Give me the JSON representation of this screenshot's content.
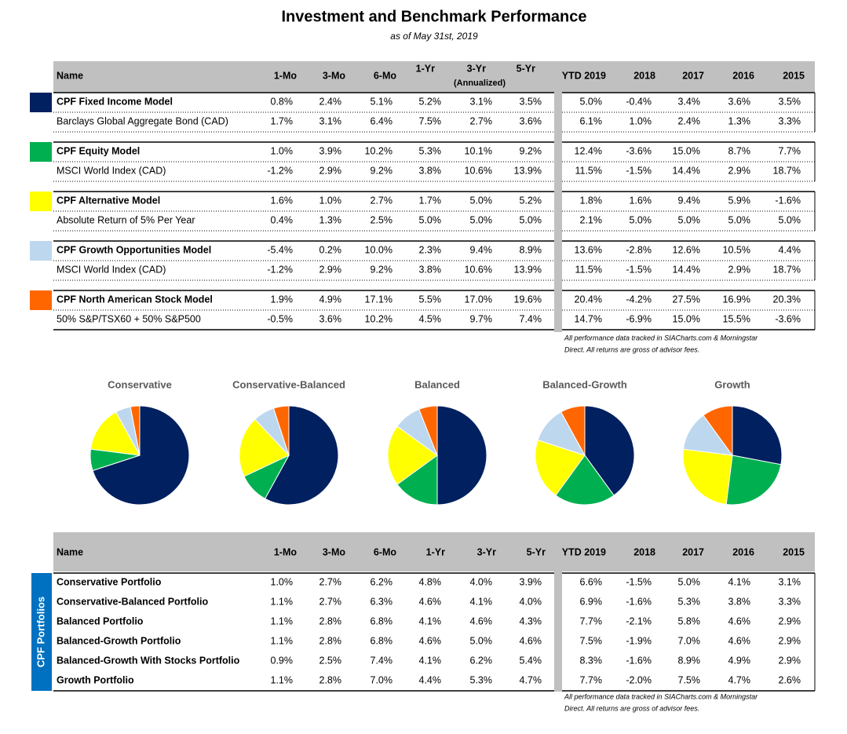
{
  "header": {
    "title": "Investment and Benchmark Performance",
    "subtitle": "as of May 31st, 2019"
  },
  "table1": {
    "columns": [
      "Name",
      "1-Mo",
      "3-Mo",
      "6-Mo",
      "1-Yr",
      "3-Yr",
      "5-Yr",
      "YTD 2019",
      "2018",
      "2017",
      "2016",
      "2015"
    ],
    "column_note": "(Annualized)",
    "groups": [
      {
        "color": "#002060",
        "rows": [
          {
            "name": "CPF Fixed Income Model",
            "cells": [
              "0.8%",
              "2.4%",
              "5.1%",
              "5.2%",
              "3.1%",
              "3.5%",
              "5.0%",
              "-0.4%",
              "3.4%",
              "3.6%",
              "3.5%"
            ]
          },
          {
            "name": "Barclays Global Aggregate Bond (CAD)",
            "cells": [
              "1.7%",
              "3.1%",
              "6.4%",
              "7.5%",
              "2.7%",
              "3.6%",
              "6.1%",
              "1.0%",
              "2.4%",
              "1.3%",
              "3.3%"
            ]
          }
        ]
      },
      {
        "color": "#00b050",
        "rows": [
          {
            "name": "CPF Equity Model",
            "cells": [
              "1.0%",
              "3.9%",
              "10.2%",
              "5.3%",
              "10.1%",
              "9.2%",
              "12.4%",
              "-3.6%",
              "15.0%",
              "8.7%",
              "7.7%"
            ]
          },
          {
            "name": "MSCI World Index (CAD)",
            "cells": [
              "-1.2%",
              "2.9%",
              "9.2%",
              "3.8%",
              "10.6%",
              "13.9%",
              "11.5%",
              "-1.5%",
              "14.4%",
              "2.9%",
              "18.7%"
            ]
          }
        ]
      },
      {
        "color": "#ffff00",
        "rows": [
          {
            "name": "CPF Alternative Model",
            "cells": [
              "1.6%",
              "1.0%",
              "2.7%",
              "1.7%",
              "5.0%",
              "5.2%",
              "1.8%",
              "1.6%",
              "9.4%",
              "5.9%",
              "-1.6%"
            ]
          },
          {
            "name": "Absolute Return of 5% Per Year",
            "cells": [
              "0.4%",
              "1.3%",
              "2.5%",
              "5.0%",
              "5.0%",
              "5.0%",
              "2.1%",
              "5.0%",
              "5.0%",
              "5.0%",
              "5.0%"
            ]
          }
        ]
      },
      {
        "color": "#bdd7ee",
        "rows": [
          {
            "name": "CPF Growth Opportunities Model",
            "cells": [
              "-5.4%",
              "0.2%",
              "10.0%",
              "2.3%",
              "9.4%",
              "8.9%",
              "13.6%",
              "-2.8%",
              "12.6%",
              "10.5%",
              "4.4%"
            ]
          },
          {
            "name": "MSCI World Index (CAD)",
            "cells": [
              "-1.2%",
              "2.9%",
              "9.2%",
              "3.8%",
              "10.6%",
              "13.9%",
              "11.5%",
              "-1.5%",
              "14.4%",
              "2.9%",
              "18.7%"
            ]
          }
        ]
      },
      {
        "color": "#ff6600",
        "rows": [
          {
            "name": "CPF North American Stock Model",
            "cells": [
              "1.9%",
              "4.9%",
              "17.1%",
              "5.5%",
              "17.0%",
              "19.6%",
              "20.4%",
              "-4.2%",
              "27.5%",
              "16.9%",
              "20.3%"
            ]
          },
          {
            "name": "50% S&P/TSX60 + 50% S&P500",
            "cells": [
              "-0.5%",
              "3.6%",
              "10.2%",
              "4.5%",
              "9.7%",
              "7.4%",
              "14.7%",
              "-6.9%",
              "15.0%",
              "15.5%",
              "-3.6%"
            ]
          }
        ]
      }
    ]
  },
  "note1": [
    "All performance data tracked in SIACharts.com & Morningstar",
    "Direct. All returns are gross of advisor fees."
  ],
  "chart_data": [
    {
      "type": "pie",
      "title": "Conservative",
      "values": [
        70,
        7,
        15,
        5,
        3
      ],
      "colors": [
        "#002060",
        "#00b050",
        "#ffff00",
        "#bdd7ee",
        "#ff6600"
      ]
    },
    {
      "type": "pie",
      "title": "Conservative-Balanced",
      "values": [
        58,
        10,
        20,
        7,
        5
      ],
      "colors": [
        "#002060",
        "#00b050",
        "#ffff00",
        "#bdd7ee",
        "#ff6600"
      ]
    },
    {
      "type": "pie",
      "title": "Balanced",
      "values": [
        50,
        15,
        20,
        9,
        6
      ],
      "colors": [
        "#002060",
        "#00b050",
        "#ffff00",
        "#bdd7ee",
        "#ff6600"
      ]
    },
    {
      "type": "pie",
      "title": "Balanced-Growth",
      "values": [
        40,
        20,
        20,
        12,
        8
      ],
      "colors": [
        "#002060",
        "#00b050",
        "#ffff00",
        "#bdd7ee",
        "#ff6600"
      ]
    },
    {
      "type": "pie",
      "title": "Growth",
      "values": [
        28,
        24,
        25,
        13,
        10
      ],
      "colors": [
        "#002060",
        "#00b050",
        "#ffff00",
        "#bdd7ee",
        "#ff6600"
      ]
    }
  ],
  "table2": {
    "columns": [
      "Name",
      "1-Mo",
      "3-Mo",
      "6-Mo",
      "1-Yr",
      "3-Yr",
      "5-Yr",
      "YTD 2019",
      "2018",
      "2017",
      "2016",
      "2015"
    ],
    "side_label": "CPF Portfolios",
    "side_color": "#0070c0",
    "rows": [
      {
        "name": "Conservative Portfolio",
        "cells": [
          "1.0%",
          "2.7%",
          "6.2%",
          "4.8%",
          "4.0%",
          "3.9%",
          "6.6%",
          "-1.5%",
          "5.0%",
          "4.1%",
          "3.1%"
        ]
      },
      {
        "name": "Conservative-Balanced Portfolio",
        "cells": [
          "1.1%",
          "2.7%",
          "6.3%",
          "4.6%",
          "4.1%",
          "4.0%",
          "6.9%",
          "-1.6%",
          "5.3%",
          "3.8%",
          "3.3%"
        ]
      },
      {
        "name": "Balanced Portfolio",
        "cells": [
          "1.1%",
          "2.8%",
          "6.8%",
          "4.1%",
          "4.6%",
          "4.3%",
          "7.7%",
          "-2.1%",
          "5.8%",
          "4.6%",
          "2.9%"
        ]
      },
      {
        "name": "Balanced-Growth Portfolio",
        "cells": [
          "1.1%",
          "2.8%",
          "6.8%",
          "4.6%",
          "5.0%",
          "4.6%",
          "7.5%",
          "-1.9%",
          "7.0%",
          "4.6%",
          "2.9%"
        ]
      },
      {
        "name": "Balanced-Growth With Stocks Portfolio",
        "cells": [
          "0.9%",
          "2.5%",
          "7.4%",
          "4.1%",
          "6.2%",
          "5.4%",
          "8.3%",
          "-1.6%",
          "8.9%",
          "4.9%",
          "2.9%"
        ]
      },
      {
        "name": "Growth Portfolio",
        "cells": [
          "1.1%",
          "2.8%",
          "7.0%",
          "4.4%",
          "5.3%",
          "4.7%",
          "7.7%",
          "-2.0%",
          "7.5%",
          "4.7%",
          "2.6%"
        ]
      }
    ]
  },
  "note2": [
    "All performance data tracked in SIACharts.com & Morningstar",
    "Direct. All returns are gross of advisor fees."
  ]
}
